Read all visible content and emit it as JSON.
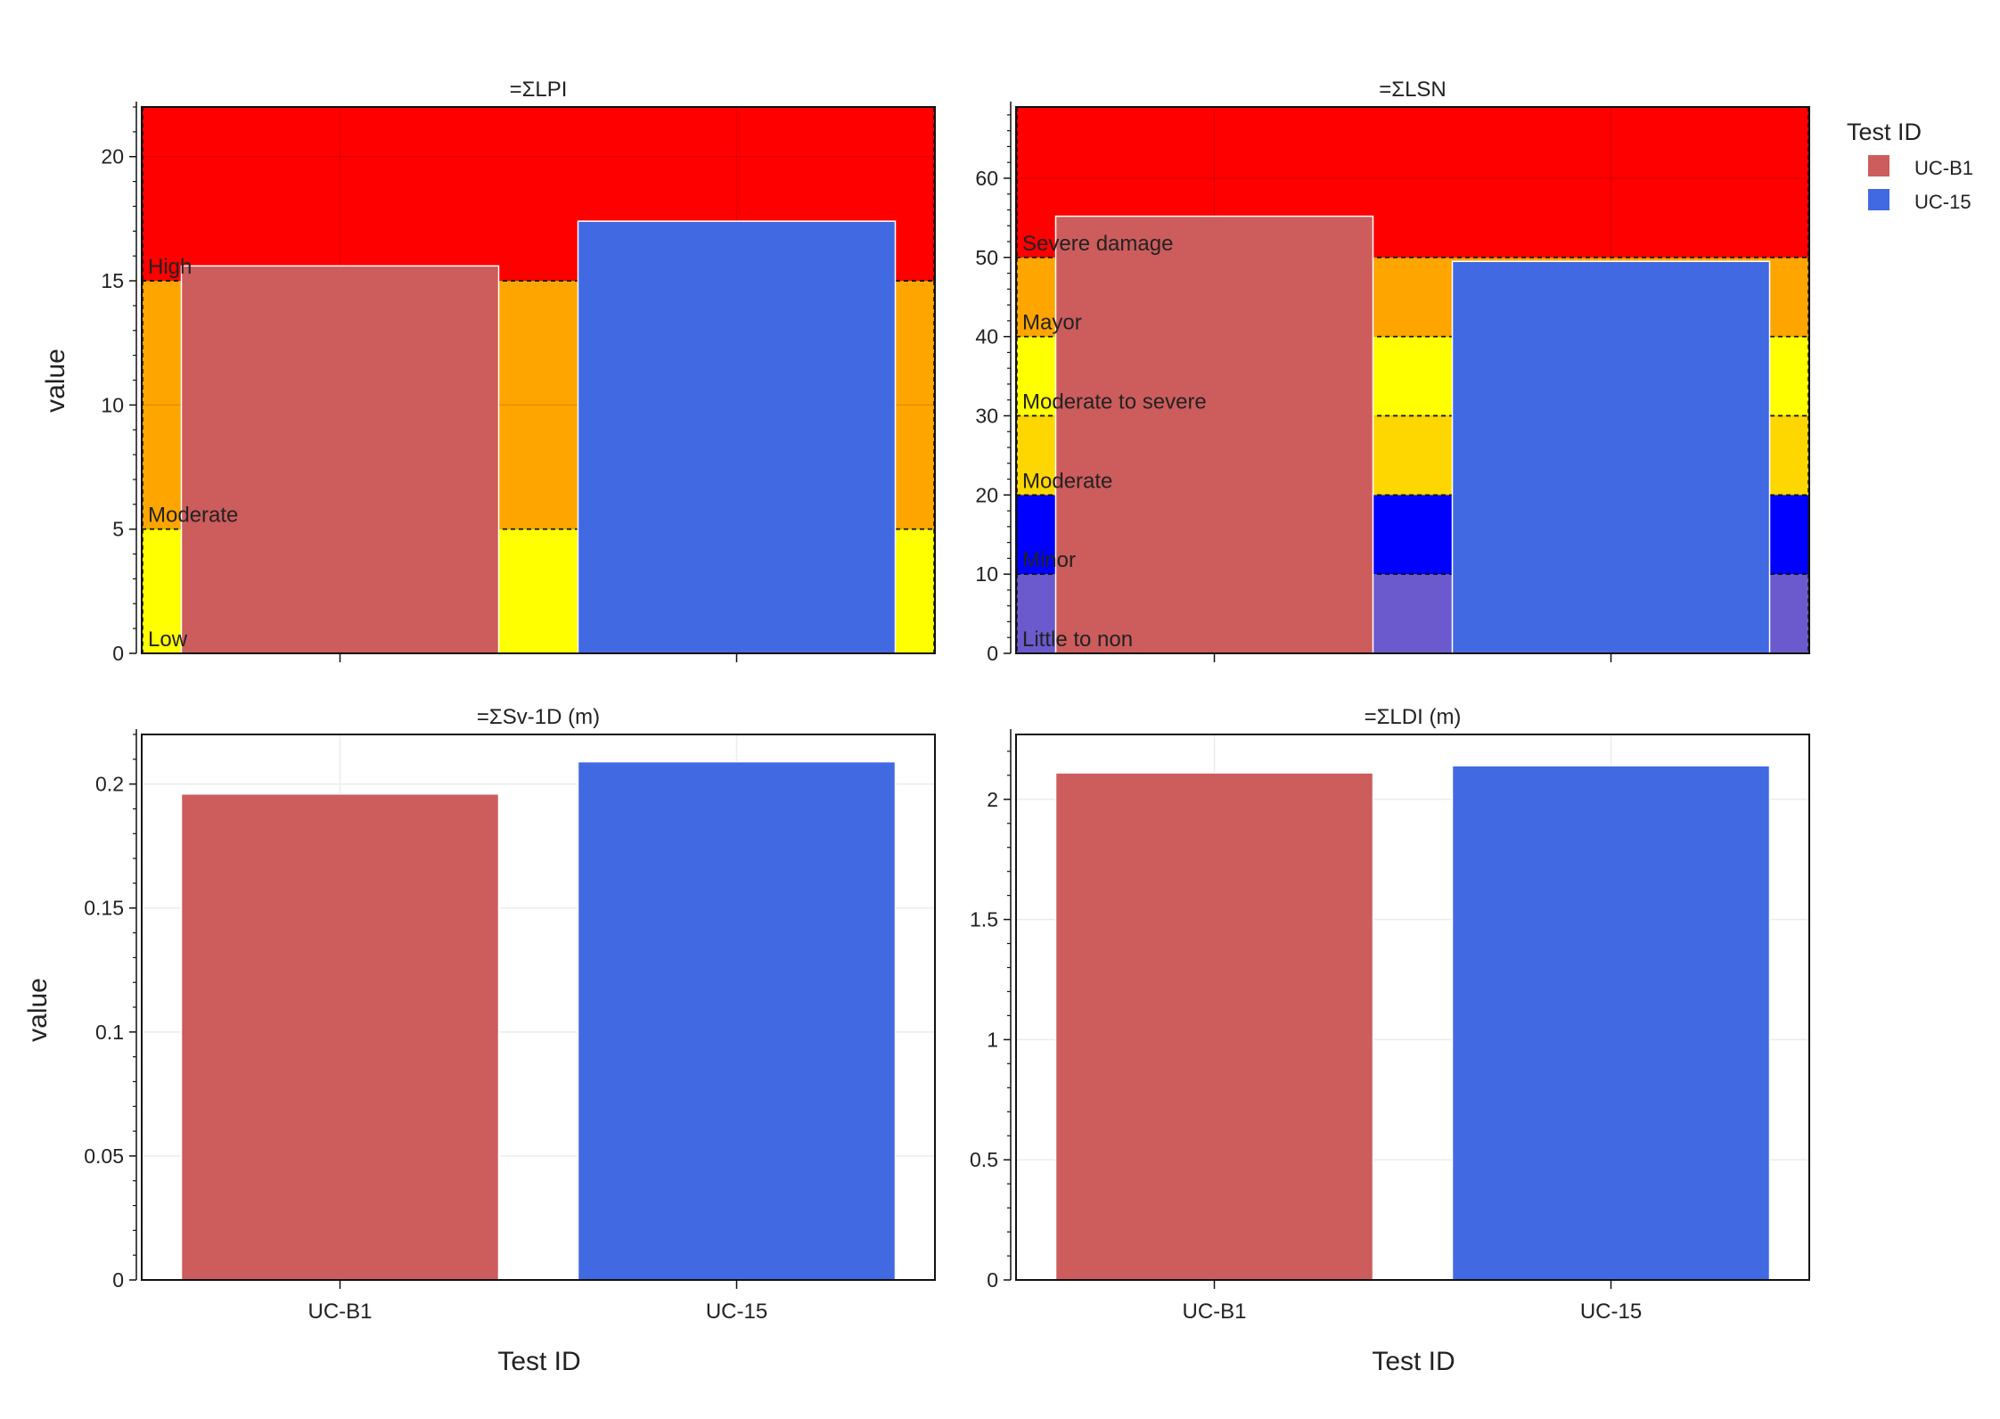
{
  "figure": {
    "ylabel": "value",
    "xlabel": "Test ID",
    "legend": {
      "title": "Test ID",
      "placement": "right",
      "items": [
        {
          "label": "UC-B1",
          "color": "#cd5c5c"
        },
        {
          "label": "UC-15",
          "color": "#4169e1"
        }
      ]
    }
  },
  "chart_data": [
    {
      "type": "bar",
      "title": "=ΣLPI",
      "categories": [
        "UC-B1",
        "UC-15"
      ],
      "values": [
        15.6,
        17.4
      ],
      "colors": [
        "#cd5c5c",
        "#4169e1"
      ],
      "ylim": [
        0,
        22
      ],
      "yticks": [
        0,
        5,
        10,
        15,
        20
      ],
      "ytick_labels": [
        "0",
        "5",
        "10",
        "15",
        "20"
      ],
      "show_xtick_labels": false,
      "grid": true,
      "bands": [
        {
          "from": 0,
          "to": 5,
          "color": "#ffff00",
          "label": "Low"
        },
        {
          "from": 5,
          "to": 15,
          "color": "#ffa500",
          "label": "Moderate"
        },
        {
          "from": 15,
          "to": 22,
          "color": "#ff0000",
          "label": "High"
        }
      ]
    },
    {
      "type": "bar",
      "title": "=ΣLSN",
      "categories": [
        "UC-B1",
        "UC-15"
      ],
      "values": [
        55.2,
        49.5
      ],
      "colors": [
        "#cd5c5c",
        "#4169e1"
      ],
      "ylim": [
        0,
        69
      ],
      "yticks": [
        0,
        10,
        20,
        30,
        40,
        50,
        60
      ],
      "ytick_labels": [
        "0",
        "10",
        "20",
        "30",
        "40",
        "50",
        "60"
      ],
      "show_xtick_labels": false,
      "grid": true,
      "bands": [
        {
          "from": 0,
          "to": 10,
          "color": "#6a5acd",
          "label": "Little to non"
        },
        {
          "from": 10,
          "to": 20,
          "color": "#0000ff",
          "label": "Minor"
        },
        {
          "from": 20,
          "to": 30,
          "color": "#ffd700",
          "label": "Moderate"
        },
        {
          "from": 30,
          "to": 40,
          "color": "#ffff00",
          "label": "Moderate to severe"
        },
        {
          "from": 40,
          "to": 50,
          "color": "#ffa500",
          "label": "Mayor"
        },
        {
          "from": 50,
          "to": 69,
          "color": "#ff0000",
          "label": "Severe damage"
        }
      ]
    },
    {
      "type": "bar",
      "title": "=ΣSv-1D (m)",
      "categories": [
        "UC-B1",
        "UC-15"
      ],
      "values": [
        0.196,
        0.209
      ],
      "colors": [
        "#cd5c5c",
        "#4169e1"
      ],
      "ylim": [
        0,
        0.22
      ],
      "yticks": [
        0,
        0.05,
        0.1,
        0.15,
        0.2
      ],
      "ytick_labels": [
        "0",
        "0.05",
        "0.1",
        "0.15",
        "0.2"
      ],
      "show_xtick_labels": true,
      "grid": true,
      "bands": []
    },
    {
      "type": "bar",
      "title": "=ΣLDI (m)",
      "categories": [
        "UC-B1",
        "UC-15"
      ],
      "values": [
        2.11,
        2.14
      ],
      "colors": [
        "#cd5c5c",
        "#4169e1"
      ],
      "ylim": [
        0,
        2.27
      ],
      "yticks": [
        0,
        0.5,
        1,
        1.5,
        2
      ],
      "ytick_labels": [
        "0",
        "0.5",
        "1",
        "1.5",
        "2"
      ],
      "show_xtick_labels": true,
      "grid": true,
      "bands": []
    }
  ]
}
